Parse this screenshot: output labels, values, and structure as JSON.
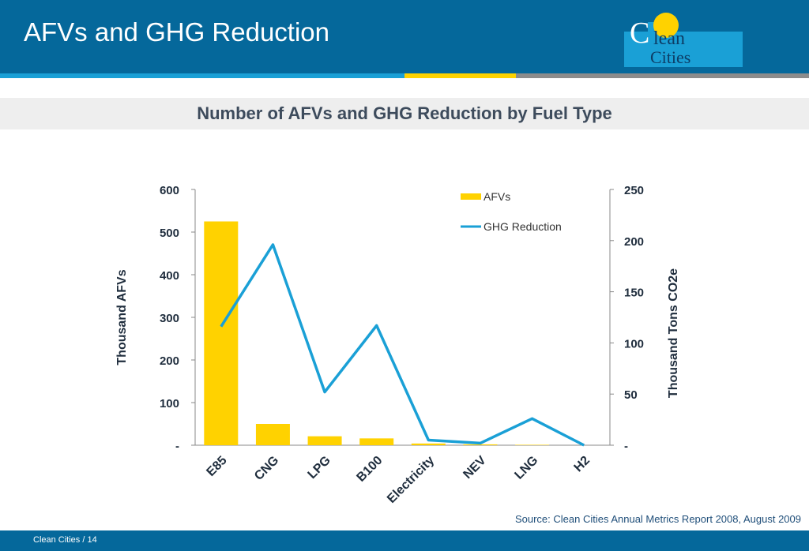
{
  "header": {
    "title": "AFVs and GHG Reduction"
  },
  "logo": {
    "line1": "Clean",
    "line2": "Cities"
  },
  "colors": {
    "header_bg": "#05689b",
    "bar": "#ffd200",
    "line": "#1aa0d6",
    "stripe_blue": "#1aa0d6",
    "stripe_yellow": "#ffd200",
    "stripe_gray": "#8c8c8c"
  },
  "chart_data": {
    "type": "bar",
    "title": "Number of AFVs and GHG Reduction by Fuel Type",
    "categories": [
      "E85",
      "CNG",
      "LPG",
      "B100",
      "Electricity",
      "NEV",
      "LNG",
      "H2"
    ],
    "series": [
      {
        "name": "AFVs",
        "type": "bar",
        "axis": "left",
        "values": [
          525,
          50,
          21,
          16,
          4,
          2,
          1,
          0
        ]
      },
      {
        "name": "GHG Reduction",
        "type": "line",
        "axis": "right",
        "values": [
          116,
          196,
          52,
          117,
          5,
          2,
          26,
          0
        ]
      }
    ],
    "ylabel": "Thousand AFVs",
    "ylabel_right": "Thousand Tons CO2e",
    "ylim": [
      0,
      600
    ],
    "ylim_right": [
      0,
      250
    ],
    "yticks": [
      "-",
      "100",
      "200",
      "300",
      "400",
      "500",
      "600"
    ],
    "yticks_right": [
      "-",
      "50",
      "100",
      "150",
      "200",
      "250"
    ],
    "legend": "top-right",
    "grid": false
  },
  "source": "Source: Clean Cities Annual Metrics Report 2008, August 2009",
  "footer": {
    "text": "Clean Cities  /  14"
  }
}
